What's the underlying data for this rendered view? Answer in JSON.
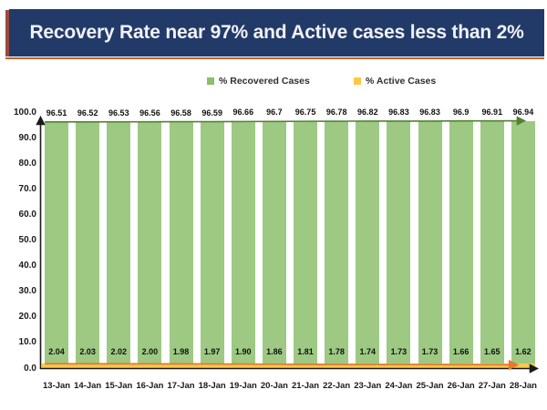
{
  "title": {
    "text": "Recovery Rate near 97% and Active cases less than 2%"
  },
  "legend": {
    "recovered": {
      "label": "% Recovered Cases",
      "color": "#8CBE6C"
    },
    "active": {
      "label": "% Active Cases",
      "color": "#FFC843"
    }
  },
  "colors": {
    "title_bg": "#223A68",
    "title_text": "#F1F1F6",
    "title_accent": "#9A4A3F",
    "title_underline": "#C0622C",
    "bar_green": "#9DC983",
    "line_green": "#538135",
    "band_yellow": "#FDCA4C",
    "line_orange": "#E8792E",
    "axis": "#1A1A1A"
  },
  "chart_data": {
    "type": "bar",
    "title": "Recovery Rate near 97% and Active cases less than 2%",
    "categories": [
      "13-Jan",
      "14-Jan",
      "15-Jan",
      "16-Jan",
      "17-Jan",
      "18-Jan",
      "19-Jan",
      "20-Jan",
      "21-Jan",
      "22-Jan",
      "23-Jan",
      "24-Jan",
      "25-Jan",
      "26-Jan",
      "27-Jan",
      "28-Jan"
    ],
    "series": [
      {
        "name": "% Recovered Cases",
        "type": "bar",
        "values": [
          96.51,
          96.52,
          96.53,
          96.56,
          96.58,
          96.59,
          96.66,
          96.7,
          96.75,
          96.78,
          96.82,
          96.83,
          96.83,
          96.9,
          96.91,
          96.94
        ],
        "labels": [
          "96.51",
          "96.52",
          "96.53",
          "96.56",
          "96.58",
          "96.59",
          "96.66",
          "96.7",
          "96.75",
          "96.78",
          "96.82",
          "96.83",
          "96.83",
          "96.9",
          "96.91",
          "96.94"
        ]
      },
      {
        "name": "% Active Cases",
        "type": "line",
        "values": [
          2.04,
          2.03,
          2.02,
          2.0,
          1.98,
          1.97,
          1.9,
          1.86,
          1.81,
          1.78,
          1.74,
          1.73,
          1.73,
          1.66,
          1.65,
          1.62
        ],
        "labels": [
          "2.04",
          "2.03",
          "2.02",
          "2.00",
          "1.98",
          "1.97",
          "1.90",
          "1.86",
          "1.81",
          "1.78",
          "1.74",
          "1.73",
          "1.73",
          "1.66",
          "1.65",
          "1.62"
        ]
      }
    ],
    "ylim": [
      0,
      100
    ],
    "ytick_step": 10,
    "ytick_labels": [
      "0.0",
      "10.0",
      "20.0",
      "30.0",
      "40.0",
      "50.0",
      "60.0",
      "70.0",
      "80.0",
      "90.0",
      "100.0"
    ],
    "grid": false,
    "legend_position": "top"
  }
}
